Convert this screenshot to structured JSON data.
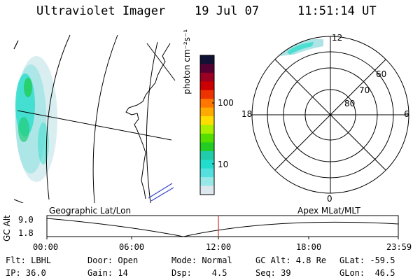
{
  "header": {
    "instrument": "Ultraviolet Imager",
    "date": "19 Jul 07",
    "time": "11:51:14 UT"
  },
  "colorbar": {
    "unit_label": "photon cm⁻²s⁻¹",
    "ticks": [
      "100",
      "10"
    ],
    "colors": [
      "#111133",
      "#550033",
      "#990022",
      "#cc0000",
      "#ee3300",
      "#ff7700",
      "#ffaa00",
      "#ffdd00",
      "#aaee00",
      "#55dd00",
      "#22cc22",
      "#22ccaa",
      "#22ddcc",
      "#55e0dd",
      "#99e8e8",
      "#dde8ee"
    ]
  },
  "polar": {
    "mlt_labels": {
      "top": "12",
      "bottom": "0",
      "left": "18",
      "right": "6"
    },
    "lat_labels": [
      "60",
      "70",
      "80"
    ]
  },
  "timeline": {
    "left_label": "Geographic Lat/Lon",
    "right_label": "Apex MLat/MLT",
    "y_axis_label": "GC Alt",
    "y_ticks": [
      "9.0",
      "1.8"
    ],
    "x_ticks": [
      "00:00",
      "06:00",
      "12:00",
      "18:00",
      "23:59"
    ]
  },
  "info": {
    "row1": [
      "Flt: LBHL",
      "Door: Open",
      "Mode: Normal",
      "GC Alt: 4.8 Re",
      "GLat: -59.5"
    ],
    "row2": [
      "IP: 36.0",
      "Gain: 14",
      "Dsp:    4.5",
      "Seq: 39",
      "GLon:  46.5"
    ]
  },
  "colors": {
    "aurora_green": "#22cc55",
    "aurora_cyan": "#33ddcc",
    "aurora_pale": "#bfe6ea",
    "time_marker": "#cc3333",
    "coast_blue": "#3344cc"
  }
}
